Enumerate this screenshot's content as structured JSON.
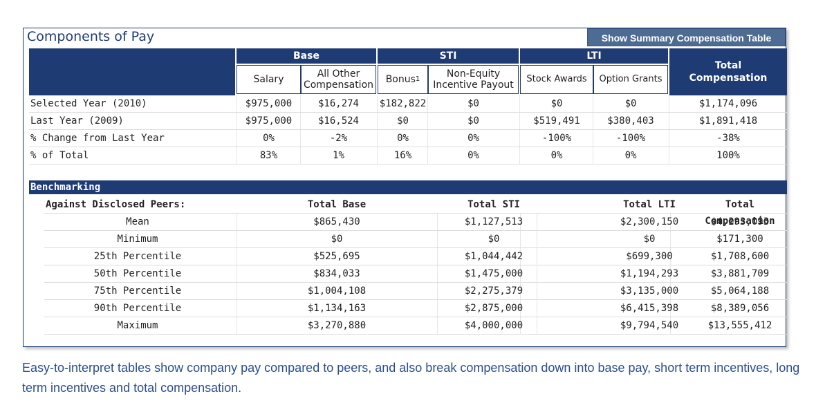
{
  "panel": {
    "title": "Components of Pay",
    "summary_button": "Show Summary Compensation Table"
  },
  "top_table": {
    "groups": {
      "base": "Base",
      "sti": "STI",
      "lti": "LTI",
      "total": "Total Compensation"
    },
    "columns": {
      "salary": "Salary",
      "all_other": "All Other Compensation",
      "bonus": "Bonus",
      "bonus_sup": "1",
      "non_equity": "Non-Equity Incentive Payout",
      "stock_awards": "Stock Awards",
      "option_grants": "Option Grants"
    },
    "rows": [
      {
        "label": "Selected Year (2010)",
        "values": [
          "$975,000",
          "$16,274",
          "$182,822",
          "$0",
          "$0",
          "$0",
          "$1,174,096"
        ]
      },
      {
        "label": "Last Year (2009)",
        "values": [
          "$975,000",
          "$16,524",
          "$0",
          "$0",
          "$519,491",
          "$380,403",
          "$1,891,418"
        ]
      },
      {
        "label": "% Change from Last Year",
        "values": [
          "0%",
          "-2%",
          "0%",
          "0%",
          "-100%",
          "-100%",
          "-38%"
        ]
      },
      {
        "label": "% of Total",
        "values": [
          "83%",
          "1%",
          "16%",
          "0%",
          "0%",
          "0%",
          "100%"
        ]
      }
    ]
  },
  "benchmark": {
    "title": "Benchmarking",
    "header": {
      "label": "Against Disclosed Peers:",
      "base": "Total Base",
      "sti": "Total STI",
      "lti": "Total LTI",
      "total": "Total Compensation"
    },
    "rows": [
      {
        "label": "Mean",
        "values": [
          "$865,430",
          "$1,127,513",
          "$2,300,150",
          "$4,293,093"
        ]
      },
      {
        "label": "Minimum",
        "values": [
          "$0",
          "$0",
          "$0",
          "$171,300"
        ]
      },
      {
        "label": "25th Percentile",
        "values": [
          "$525,695",
          "$1,044,442",
          "$699,300",
          "$1,708,600"
        ]
      },
      {
        "label": "50th Percentile",
        "values": [
          "$834,033",
          "$1,475,000",
          "$1,194,293",
          "$3,881,709"
        ]
      },
      {
        "label": "75th Percentile",
        "values": [
          "$1,004,108",
          "$2,275,379",
          "$3,135,000",
          "$5,064,188"
        ]
      },
      {
        "label": "90th Percentile",
        "values": [
          "$1,134,163",
          "$2,875,000",
          "$6,415,398",
          "$8,389,056"
        ]
      },
      {
        "label": "Maximum",
        "values": [
          "$3,270,880",
          "$4,000,000",
          "$9,794,540",
          "$13,555,412"
        ]
      }
    ]
  },
  "caption": "Easy-to-interpret tables show company pay compared to peers, and also break compensation down into base pay, short term incentives, long term incentives and total compensation."
}
